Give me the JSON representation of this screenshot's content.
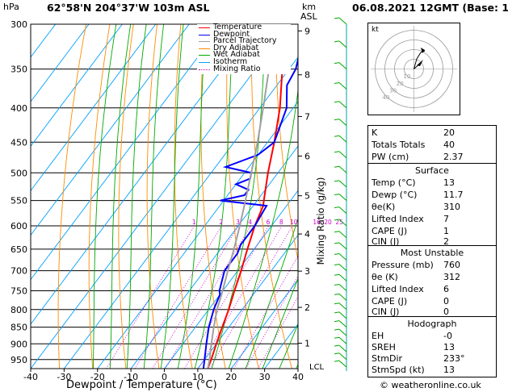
{
  "header": {
    "hpa": "hPa",
    "location": "62°58'N  204°37'W  103m  ASL",
    "km": "km",
    "asl": "ASL",
    "datetime": "06.08.2021  12GMT  (Base: 12)",
    "mixing_axis": "Mixing Ratio (g/kg)",
    "xlabel": "Dewpoint / Temperature (°C)",
    "copyright": "© weatheronline.co.uk"
  },
  "legend": [
    {
      "label": "Temperature",
      "color": "#ff0000",
      "dash": ""
    },
    {
      "label": "Dewpoint",
      "color": "#0000ff",
      "dash": ""
    },
    {
      "label": "Parcel Trajectory",
      "color": "#a0a0a0",
      "dash": ""
    },
    {
      "label": "Dry Adiabat",
      "color": "#ff8c00",
      "dash": ""
    },
    {
      "label": "Wet Adiabat",
      "color": "#00aa00",
      "dash": ""
    },
    {
      "label": "Isotherm",
      "color": "#00a0ff",
      "dash": ""
    },
    {
      "label": "Mixing Ratio",
      "color": "#cc00cc",
      "dash": "1,2"
    }
  ],
  "chart_data": {
    "type": "line",
    "title": "",
    "xlabel": "Dewpoint / Temperature (°C)",
    "ylabel": "hPa",
    "xlim": [
      -40,
      40
    ],
    "ylim": [
      980,
      300
    ],
    "pressure_ticks": [
      300,
      350,
      400,
      450,
      500,
      550,
      600,
      650,
      700,
      750,
      800,
      850,
      900,
      950
    ],
    "temperature_ticks": [
      -40,
      -30,
      -20,
      -10,
      0,
      10,
      20,
      30,
      40
    ],
    "km_ticks": [
      {
        "label": "9",
        "p": 307
      },
      {
        "label": "8",
        "p": 357
      },
      {
        "label": "7",
        "p": 412
      },
      {
        "label": "6",
        "p": 472
      },
      {
        "label": "5",
        "p": 541
      },
      {
        "label": "4",
        "p": 617
      },
      {
        "label": "3",
        "p": 701
      },
      {
        "label": "2",
        "p": 794
      },
      {
        "label": "1",
        "p": 898
      }
    ],
    "lcl_label": "LCL",
    "lcl_p": 972,
    "mixing_ratio_labels": [
      "1",
      "2",
      "3",
      "4",
      "6",
      "8",
      "10",
      "16",
      "20",
      "25"
    ],
    "mixing_ratio_values": [
      1,
      2,
      3,
      4,
      6,
      8,
      10,
      16,
      20,
      25
    ],
    "series": [
      {
        "name": "Temperature",
        "color": "#ff0000",
        "p": [
          980,
          950,
          900,
          850,
          800,
          750,
          700,
          650,
          600,
          560,
          550,
          500,
          450,
          400,
          350,
          300
        ],
        "t": [
          13,
          12,
          10,
          8,
          6,
          3.5,
          1,
          -2,
          -5,
          -7,
          -8,
          -13,
          -18,
          -24,
          -32,
          -41
        ]
      },
      {
        "name": "Dewpoint",
        "color": "#0000ff",
        "p": [
          980,
          950,
          900,
          850,
          800,
          760,
          750,
          700,
          660,
          640,
          620,
          600,
          560,
          550,
          540,
          530,
          520,
          510,
          500,
          490,
          470,
          450,
          400,
          370,
          350,
          320,
          300
        ],
        "t": [
          11.7,
          10,
          7,
          4,
          1.5,
          0,
          -1,
          -4,
          -4,
          -5,
          -5,
          -5,
          -6,
          -21,
          -15,
          -15,
          -20,
          -17,
          -18,
          -27,
          -20,
          -18,
          -22,
          -27,
          -28,
          -32,
          -36
        ]
      },
      {
        "name": "Parcel Trajectory",
        "color": "#a0a0a0",
        "p": [
          980,
          950,
          900,
          850,
          800,
          760,
          700,
          650,
          600,
          550,
          500,
          450,
          400,
          350,
          300
        ],
        "t": [
          13,
          11.5,
          8.5,
          5.5,
          2.5,
          0.5,
          -3,
          -6,
          -9.5,
          -13.5,
          -18,
          -23,
          -29,
          -36,
          -44
        ]
      }
    ]
  },
  "hodograph": {
    "label": "kt",
    "ring_labels": [
      "10",
      "20",
      "30",
      "40"
    ]
  },
  "indices": [
    {
      "label": "K",
      "value": "20"
    },
    {
      "label": "Totals Totals",
      "value": "40"
    },
    {
      "label": "PW (cm)",
      "value": "2.37"
    }
  ],
  "surface": {
    "title": "Surface",
    "rows": [
      {
        "label": "Temp (°C)",
        "value": "13"
      },
      {
        "label": "Dewp (°C)",
        "value": "11.7"
      },
      {
        "label": "θe(K)",
        "value": "310"
      },
      {
        "label": "Lifted Index",
        "value": "7"
      },
      {
        "label": "CAPE (J)",
        "value": "1"
      },
      {
        "label": "CIN (J)",
        "value": "2"
      }
    ]
  },
  "unstable": {
    "title": "Most Unstable",
    "rows": [
      {
        "label": "Pressure (mb)",
        "value": "760"
      },
      {
        "label": "θe (K)",
        "value": "312"
      },
      {
        "label": "Lifted Index",
        "value": "6"
      },
      {
        "label": "CAPE (J)",
        "value": "0"
      },
      {
        "label": "CIN (J)",
        "value": "0"
      }
    ]
  },
  "hodo_table": {
    "title": "Hodograph",
    "rows": [
      {
        "label": "EH",
        "value": "-0"
      },
      {
        "label": "SREH",
        "value": "13"
      },
      {
        "label": "StmDir",
        "value": "233°"
      },
      {
        "label": "StmSpd (kt)",
        "value": "13"
      }
    ]
  }
}
